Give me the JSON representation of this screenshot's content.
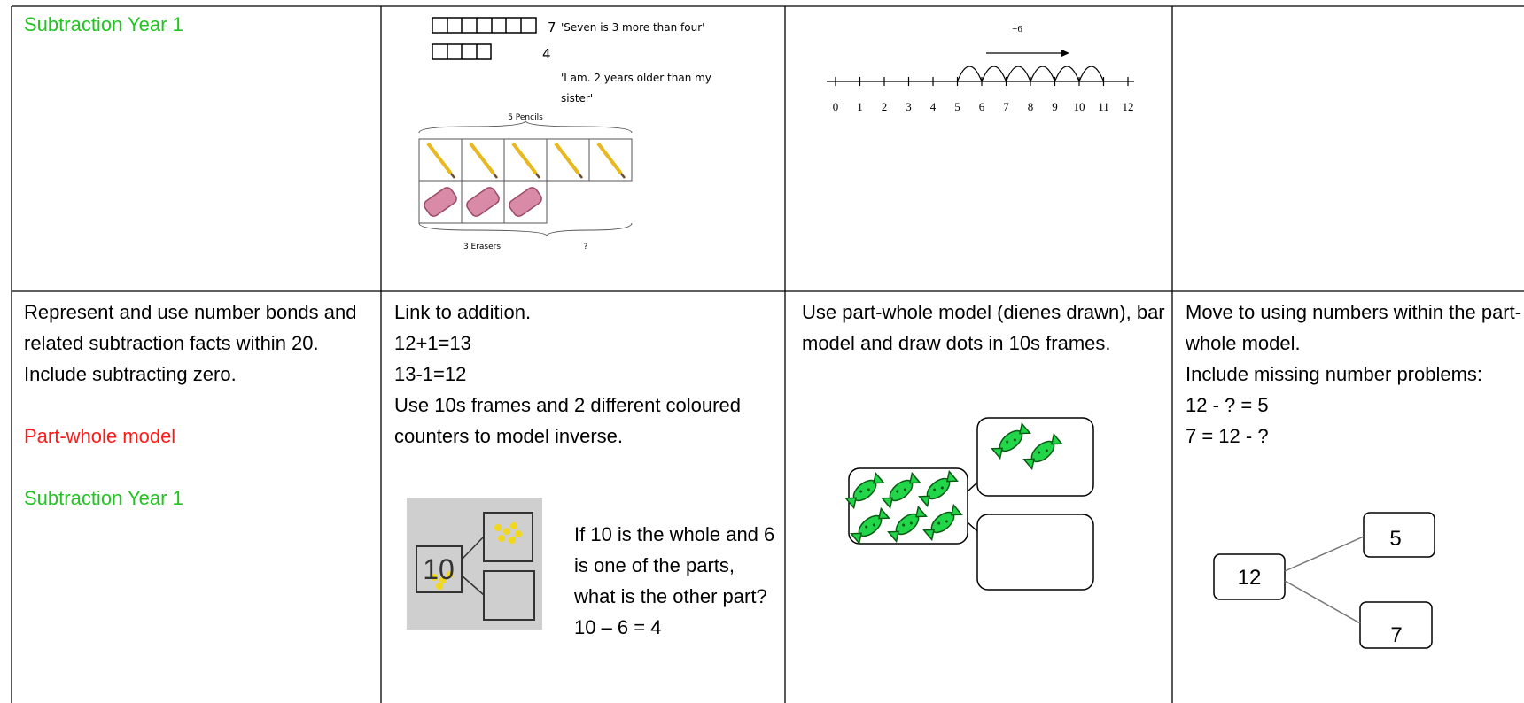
{
  "row1": {
    "heading": "Subtraction Year 1",
    "bar_model": {
      "whole": "7",
      "part": "4",
      "statements": [
        "'Seven is 3 more than four'",
        "'I am. 2 years older than my",
        "sister'"
      ],
      "top_label": "5 Pencils",
      "bottom_labels": [
        "3 Erasers",
        "?"
      ]
    },
    "number_line": {
      "jump_label": "+6",
      "labels": [
        "0",
        "1",
        "2",
        "3",
        "4",
        "5",
        "6",
        "7",
        "8",
        "9",
        "10",
        "11",
        "12"
      ]
    }
  },
  "row2": {
    "objective": {
      "text": "Represent and use number bonds and related subtraction facts within 20. Include subtracting zero.",
      "model": "Part-whole model",
      "heading": "Subtraction Year 1"
    },
    "addition_link": {
      "lines": [
        "Link to addition.",
        "12+1=13",
        "13-1=12",
        "Use 10s frames and 2 different coloured counters to model inverse."
      ],
      "photo_label": "10",
      "question": "If 10 is the whole and 6 is one of the parts, what is the other part?",
      "answer": "10 – 6 = 4"
    },
    "part_whole": {
      "text": "Use part-whole model (dienes drawn), bar model and draw dots in 10s frames."
    },
    "missing_numbers": {
      "lines": [
        "Move to using numbers within the part-whole model.",
        "Include missing number problems:",
        "12 - ? = 5",
        "7 = 12 - ?"
      ],
      "diagram": {
        "whole": "12",
        "parts": [
          "5",
          "7"
        ]
      }
    }
  }
}
